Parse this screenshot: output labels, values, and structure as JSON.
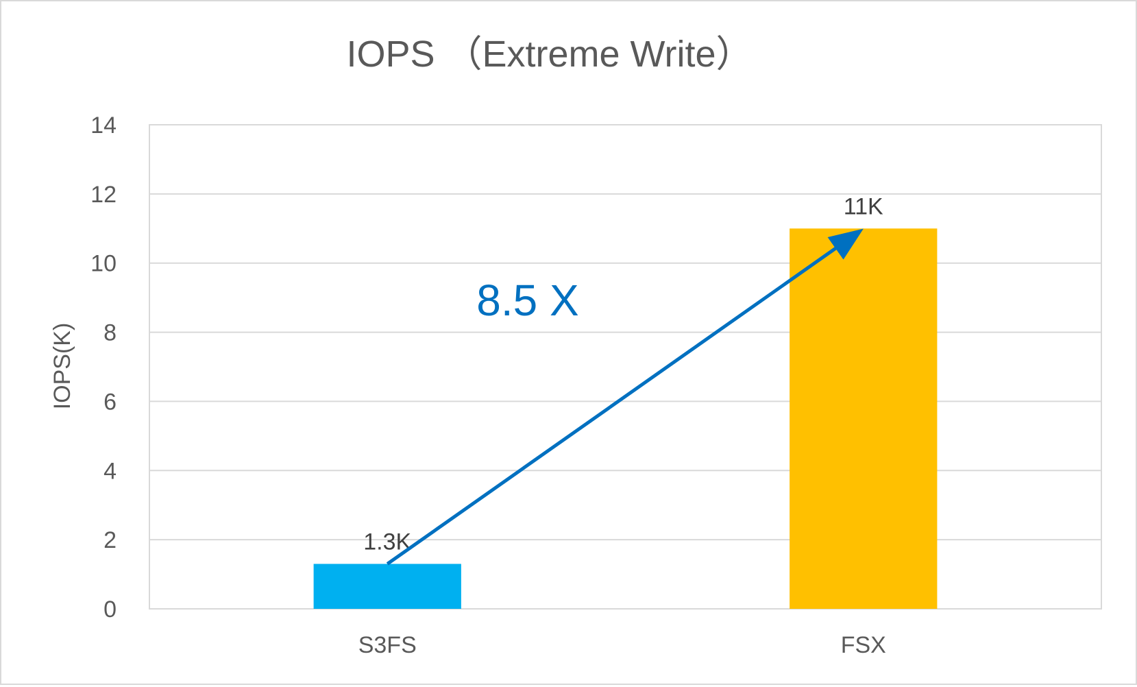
{
  "chart_data": {
    "type": "bar",
    "title": "IOPS （Extreme Write）",
    "xlabel": "",
    "ylabel": "IOPS(K)",
    "categories": [
      "S3FS",
      "FSX"
    ],
    "values": [
      1.3,
      11
    ],
    "value_labels": [
      "1.3K",
      "11K"
    ],
    "bar_colors": [
      "#00b0f0",
      "#ffc000"
    ],
    "ylim": [
      0,
      14
    ],
    "yticks": [
      0,
      2,
      4,
      6,
      8,
      10,
      12,
      14
    ],
    "ytick_labels": [
      "0",
      "2",
      "4",
      "6",
      "8",
      "10",
      "12",
      "14"
    ],
    "grid": true,
    "annotation": {
      "text": "8.5 X",
      "color": "#0070c0",
      "arrow_from_category": "S3FS",
      "arrow_to_category": "FSX"
    }
  }
}
